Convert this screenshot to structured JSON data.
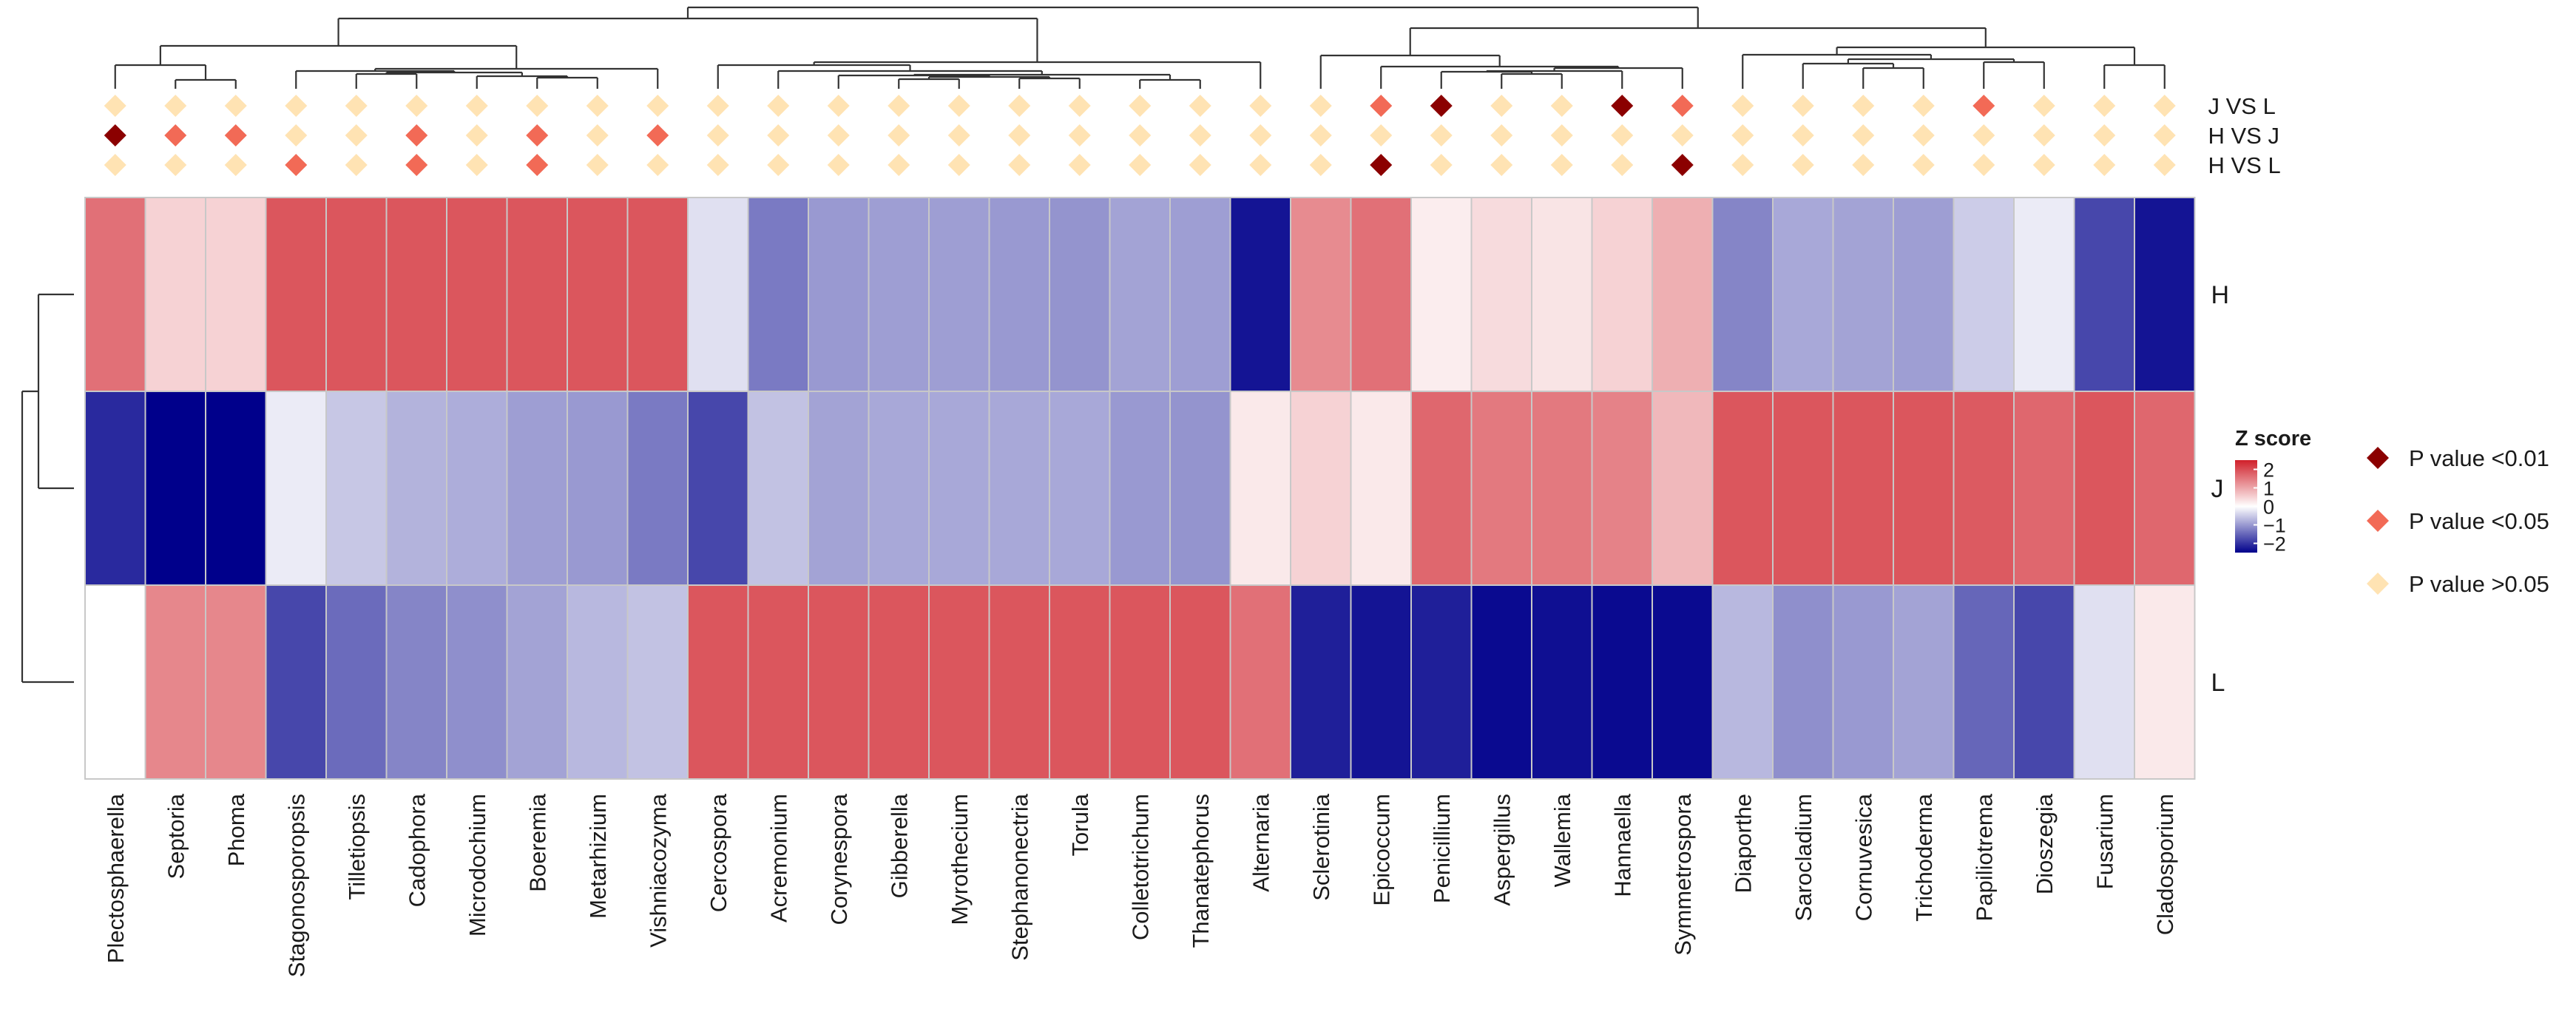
{
  "chart_data": {
    "type": "heatmap",
    "title": "",
    "columns": [
      "Plectosphaerella",
      "Septoria",
      "Phoma",
      "Stagonosporopsis",
      "Tilletiopsis",
      "Cadophora",
      "Microdochium",
      "Boeremia",
      "Metarhizium",
      "Vishniacozyma",
      "Cercospora",
      "Acremonium",
      "Corynespora",
      "Gibberella",
      "Myrothecium",
      "Stephanonectria",
      "Torula",
      "Colletotrichum",
      "Thanatephorus",
      "Alternaria",
      "Sclerotinia",
      "Epicoccum",
      "Penicillium",
      "Aspergillus",
      "Wallemia",
      "Hannaella",
      "Symmetrospora",
      "Diaporthe",
      "Sarocladium",
      "Cornuvesica",
      "Trichoderma",
      "Papiliotrema",
      "Dioszegia",
      "Fusarium",
      "Cladosporium"
    ],
    "rows": [
      "H",
      "J",
      "L"
    ],
    "z_scores": [
      [
        1.6,
        0.5,
        0.5,
        1.9,
        1.9,
        1.9,
        1.9,
        1.9,
        1.9,
        1.9,
        -0.3,
        -1.3,
        -1.0,
        -0.95,
        -0.95,
        -1.0,
        -1.05,
        -0.9,
        -0.95,
        -2.3,
        1.3,
        1.6,
        0.2,
        0.4,
        0.3,
        0.5,
        0.9,
        -1.2,
        -0.85,
        -0.9,
        -0.95,
        -0.5,
        -0.2,
        -1.8,
        -2.3
      ],
      [
        -2.1,
        -2.5,
        -2.5,
        -0.2,
        -0.55,
        -0.75,
        -0.8,
        -0.95,
        -1.0,
        -1.3,
        -1.8,
        -0.6,
        -0.9,
        -0.85,
        -0.85,
        -0.85,
        -0.85,
        -1.0,
        -1.05,
        0.25,
        0.5,
        0.25,
        1.7,
        1.5,
        1.5,
        1.4,
        0.8,
        1.9,
        1.9,
        1.9,
        1.9,
        1.85,
        1.7,
        1.9,
        1.7
      ],
      [
        0.0,
        1.35,
        1.35,
        -1.8,
        -1.45,
        -1.2,
        -1.1,
        -0.9,
        -0.7,
        -0.6,
        1.9,
        1.9,
        1.9,
        1.9,
        1.9,
        1.9,
        1.9,
        1.9,
        1.9,
        1.6,
        -2.2,
        -2.3,
        -2.2,
        -2.4,
        -2.35,
        -2.4,
        -2.4,
        -0.7,
        -1.1,
        -1.0,
        -0.9,
        -1.5,
        -1.8,
        -0.3,
        0.25
      ]
    ],
    "annotation_rows": [
      "J VS L",
      "H VS J",
      "H VS L"
    ],
    "annotation_levels": [
      [
        0,
        0,
        0,
        0,
        0,
        0,
        0,
        0,
        0,
        0,
        0,
        0,
        0,
        0,
        0,
        0,
        0,
        0,
        0,
        0,
        0,
        1,
        2,
        0,
        0,
        2,
        1,
        0,
        0,
        0,
        0,
        1,
        0,
        0,
        0
      ],
      [
        2,
        1,
        1,
        0,
        0,
        1,
        0,
        1,
        0,
        1,
        0,
        0,
        0,
        0,
        0,
        0,
        0,
        0,
        0,
        0,
        0,
        0,
        0,
        0,
        0,
        0,
        0,
        0,
        0,
        0,
        0,
        0,
        0,
        0,
        0
      ],
      [
        0,
        0,
        0,
        1,
        0,
        1,
        0,
        1,
        0,
        0,
        0,
        0,
        0,
        0,
        0,
        0,
        0,
        0,
        0,
        0,
        0,
        2,
        0,
        0,
        0,
        0,
        2,
        0,
        0,
        0,
        0,
        0,
        0,
        0,
        0
      ]
    ],
    "legend_z": {
      "title": "Z score",
      "ticks": [
        {
          "value": 2,
          "label": "2"
        },
        {
          "value": 1,
          "label": "1"
        },
        {
          "value": 0,
          "label": "0"
        },
        {
          "value": -1,
          "label": "−1"
        },
        {
          "value": -2,
          "label": "−2"
        }
      ],
      "range": [
        -2.5,
        2.5
      ],
      "colors": {
        "low": "#00008b",
        "mid": "#ffffff",
        "high": "#d0202a"
      }
    },
    "legend_p": [
      {
        "label": "P value <0.01",
        "color": "#8b0000"
      },
      {
        "label": "P value <0.05",
        "color": "#f26a56"
      },
      {
        "label": "P value >0.05",
        "color": "#ffe3b3"
      }
    ],
    "legend_placement": "right",
    "column_tree_merges": [
      [
        [
          0,
          "L",
          0
        ],
        [
          0,
          "L",
          1
        ]
      ],
      [
        [
          0,
          "L",
          2
        ],
        [
          0,
          "L",
          3
        ]
      ],
      [
        [
          0,
          "L",
          6
        ],
        [
          0,
          "L",
          7
        ]
      ],
      [
        [
          0,
          "L",
          4
        ],
        [
          0,
          "L",
          5
        ]
      ],
      [
        [
          0,
          "L",
          9
        ],
        [
          0,
          "L",
          10
        ]
      ],
      [
        [
          0,
          "L",
          8
        ],
        [
          0,
          "L",
          11
        ]
      ],
      [
        [
          0,
          "L",
          12
        ],
        [
          0,
          "L",
          13
        ]
      ],
      [
        [
          0,
          "L",
          14
        ],
        [
          0,
          "L",
          15
        ]
      ],
      [
        [
          0,
          "L",
          17
        ],
        [
          0,
          "L",
          18
        ]
      ],
      [
        [
          0,
          "L",
          16
        ],
        [
          0,
          "L",
          19
        ]
      ],
      [
        [
          0,
          "L",
          20
        ],
        [
          0,
          "L",
          21
        ]
      ],
      [
        [
          0,
          "L",
          22
        ],
        [
          0,
          "L",
          23
        ]
      ],
      [
        [
          0,
          "L",
          25
        ],
        [
          0,
          "L",
          26
        ]
      ],
      [
        [
          0,
          "L",
          24
        ],
        [
          0,
          "L",
          27
        ]
      ],
      [
        [
          0,
          "L",
          28
        ],
        [
          0,
          "L",
          29
        ]
      ],
      [
        [
          0,
          "L",
          31
        ],
        [
          0,
          "L",
          32
        ]
      ],
      [
        [
          0,
          "L",
          30
        ],
        [
          0,
          "L",
          33
        ]
      ],
      [
        [
          0,
          "L",
          34
        ],
        [
          0,
          "L",
          35
        ]
      ],
      [
        [
          0,
          "L",
          36
        ],
        [
          0,
          "L",
          37
        ]
      ],
      [
        [
          0,
          "L",
          38
        ],
        [
          0,
          "L",
          39
        ]
      ],
      [
        [
          0,
          "L",
          40
        ],
        [
          0,
          "L",
          41
        ]
      ],
      [
        [
          0,
          "L",
          42
        ],
        [
          0,
          "L",
          43
        ]
      ],
      [
        [
          0,
          "L",
          44
        ],
        [
          0,
          "L",
          45
        ]
      ],
      [
        [
          0,
          "L",
          46
        ],
        [
          0,
          "L",
          47
        ]
      ],
      [
        [
          0,
          "L",
          48
        ],
        [
          0,
          "L",
          49
        ]
      ],
      [
        [
          0,
          "L",
          50
        ],
        [
          0,
          "L",
          51
        ]
      ],
      [
        [
          0,
          "L",
          52
        ],
        [
          0,
          "L",
          53
        ]
      ],
      [
        [
          0,
          "L",
          54
        ],
        [
          0,
          "L",
          55
        ]
      ],
      [
        [
          0,
          "L",
          56
        ],
        [
          0,
          "L",
          57
        ]
      ],
      [
        [
          0,
          "L",
          58
        ],
        [
          0,
          "L",
          59
        ]
      ],
      [
        [
          0,
          "L",
          60
        ],
        [
          0,
          "L",
          61
        ]
      ],
      [
        [
          0,
          "L",
          62
        ],
        [
          0,
          "L",
          63
        ]
      ],
      [
        [
          0,
          "L",
          64
        ],
        [
          0,
          "L",
          65
        ]
      ],
      [
        [
          0,
          "L",
          66
        ],
        [
          0,
          "L",
          67
        ]
      ]
    ],
    "row_tree_merges": [
      [
        [
          0,
          "L",
          0
        ],
        [
          0,
          "L",
          1
        ]
      ],
      [
        [
          0,
          "L",
          2
        ],
        [
          0,
          "L",
          3
        ]
      ]
    ]
  }
}
